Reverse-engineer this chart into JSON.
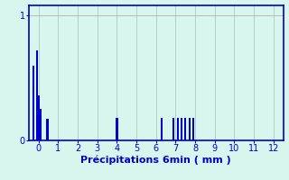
{
  "xlabel": "Précipitations 6min ( mm )",
  "xlim": [
    -0.5,
    12.5
  ],
  "ylim": [
    0,
    1.08
  ],
  "yticks": [
    0,
    1
  ],
  "xticks": [
    0,
    1,
    2,
    3,
    4,
    5,
    6,
    7,
    8,
    9,
    10,
    11,
    12
  ],
  "bar_positions": [
    -0.25,
    -0.1,
    0.0,
    0.1,
    0.45,
    4.0,
    6.3,
    6.9,
    7.1,
    7.3,
    7.5,
    7.7,
    7.9
  ],
  "bar_heights": [
    0.6,
    0.72,
    0.36,
    0.25,
    0.17,
    0.18,
    0.18,
    0.18,
    0.18,
    0.18,
    0.18,
    0.18,
    0.18
  ],
  "bar_width": 0.1,
  "bar_color": "#0000cc",
  "bg_color": "#d8f5ee",
  "grid_color": "#b0c8c0",
  "axis_color": "#0000cc",
  "tick_color": "#0000cc",
  "label_color": "#0000cc",
  "hline_y": 1.0,
  "hline_color": "#b0b0b0",
  "xlabel_fontsize": 8,
  "tick_fontsize": 7
}
